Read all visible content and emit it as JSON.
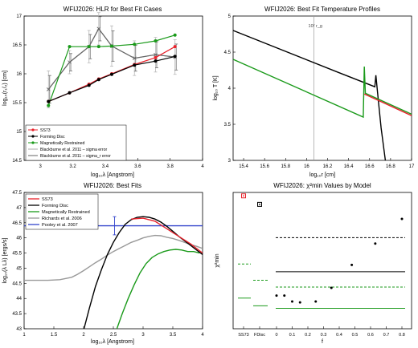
{
  "chart_data": [
    {
      "type": "line",
      "title": "WFIJ2026: HLR for Best Fit Cases",
      "xlabel": "log₁₀λ [Angstrom]",
      "ylabel": "log₁₀(r₁/₂) [cm]",
      "xlim": [
        2.9,
        4.0
      ],
      "ylim": [
        14.5,
        17.0
      ],
      "xticks": [
        "3",
        "3.2",
        "3.4",
        "3.6",
        "3.8",
        "4"
      ],
      "xtick_values": [
        3.0,
        3.2,
        3.4,
        3.6,
        3.8,
        4.0
      ],
      "yticks": [
        "14.5",
        "15",
        "15.5",
        "16",
        "16.5",
        "17"
      ],
      "ytick_values": [
        14.5,
        15.0,
        15.5,
        16.0,
        16.5,
        17.0
      ],
      "legend_position": "bottom-left",
      "series": [
        {
          "name": "SS73",
          "color": "#e8222b",
          "marker": "o",
          "x": [
            3.05,
            3.18,
            3.3,
            3.36,
            3.44,
            3.58,
            3.71,
            3.83
          ],
          "y": [
            15.52,
            15.67,
            15.82,
            15.91,
            16.0,
            16.16,
            16.28,
            16.47
          ]
        },
        {
          "name": "Forming Disc",
          "color": "#000000",
          "marker": "o",
          "x": [
            3.05,
            3.18,
            3.3,
            3.36,
            3.44,
            3.58,
            3.71,
            3.83
          ],
          "y": [
            15.52,
            15.67,
            15.8,
            15.9,
            15.99,
            16.15,
            16.22,
            16.3
          ]
        },
        {
          "name": "Magnetically Restrained",
          "color": "#1a9a1a",
          "marker": "o",
          "x": [
            3.05,
            3.18,
            3.3,
            3.36,
            3.44,
            3.58,
            3.71,
            3.83
          ],
          "y": [
            15.45,
            16.47,
            16.47,
            16.47,
            16.48,
            16.51,
            16.57,
            16.67
          ]
        },
        {
          "name": "Blackburne et al. 2011 – sigma error",
          "color": "#aaaaaa",
          "marker": "x",
          "x": [
            3.05,
            3.18,
            3.3,
            3.36,
            3.44,
            3.58,
            3.71,
            3.83
          ],
          "y": [
            15.73,
            16.2,
            16.47,
            16.78,
            16.48,
            16.27,
            16.33,
            16.29
          ]
        },
        {
          "name": "Blackburne et al. 2011 – sigma_r error",
          "color": "#666666",
          "marker": "x",
          "x": [
            3.05,
            3.18,
            3.3,
            3.36,
            3.44,
            3.58,
            3.71,
            3.83
          ],
          "y": [
            15.73,
            16.2,
            16.47,
            16.78,
            16.48,
            16.27,
            16.33,
            16.29
          ]
        }
      ]
    },
    {
      "type": "line",
      "title": "WFIJ2026: Best Fit Temperature Profiles",
      "xlabel": "log₁₀r [cm]",
      "ylabel": "log₁₀ T [K]",
      "xlim": [
        15.3,
        17.0
      ],
      "ylim": [
        3.0,
        5.0
      ],
      "xticks": [
        "15.4",
        "15.6",
        "15.8",
        "16",
        "16.2",
        "16.4",
        "16.6",
        "16.8",
        "17"
      ],
      "xtick_values": [
        15.4,
        15.6,
        15.8,
        16.0,
        16.2,
        16.4,
        16.6,
        16.8,
        17.0
      ],
      "yticks": [
        "3",
        "3.5",
        "4",
        "4.5",
        "5"
      ],
      "ytick_values": [
        3.0,
        3.5,
        4.0,
        4.5,
        5.0
      ],
      "annotation": "10² r_g",
      "annotation_x": 16.07,
      "series": [
        {
          "name": "black",
          "color": "#000000",
          "x": [
            15.3,
            16.3,
            16.65,
            16.66,
            16.675,
            16.71,
            16.75
          ],
          "y": [
            4.8,
            4.22,
            4.02,
            4.18,
            3.95,
            3.45,
            3.0
          ]
        },
        {
          "name": "green",
          "color": "#1a9a1a",
          "x": [
            15.3,
            16.54,
            16.55,
            16.56,
            17.0
          ],
          "y": [
            4.4,
            3.6,
            4.3,
            3.93,
            3.64
          ]
        },
        {
          "name": "red",
          "color": "#e8222b",
          "x": [
            16.55,
            17.0
          ],
          "y": [
            3.92,
            3.62
          ]
        }
      ]
    },
    {
      "type": "line",
      "title": "WFIJ2026: Best Fits",
      "xlabel": "log₁₀λ [Angstrom]",
      "ylabel": "log₁₀(λ Lλ) [ergs/s]",
      "xlim": [
        1.0,
        4.0
      ],
      "ylim": [
        43.0,
        47.5
      ],
      "xticks": [
        "1",
        "1.5",
        "2",
        "2.5",
        "3",
        "3.5",
        "4"
      ],
      "xtick_values": [
        1.0,
        1.5,
        2.0,
        2.5,
        3.0,
        3.5,
        4.0
      ],
      "yticks": [
        "43",
        "43.5",
        "44",
        "44.5",
        "45",
        "45.5",
        "46",
        "46.5",
        "47",
        "47.5"
      ],
      "ytick_values": [
        43.0,
        43.5,
        44.0,
        44.5,
        45.0,
        45.5,
        46.0,
        46.5,
        47.0,
        47.5
      ],
      "legend_position": "top-left",
      "series": [
        {
          "name": "SS73",
          "color": "#e8222b",
          "x": [
            2.8,
            3.0,
            3.2,
            3.4,
            3.6,
            3.8,
            4.0
          ],
          "y": [
            46.62,
            46.65,
            46.55,
            46.3,
            46.05,
            45.8,
            45.5
          ]
        },
        {
          "name": "Forming Disc",
          "color": "#000000",
          "x": [
            2.0,
            2.1,
            2.2,
            2.3,
            2.4,
            2.5,
            2.6,
            2.7,
            2.8,
            2.9,
            3.0,
            3.1,
            3.2,
            3.3,
            3.4,
            3.5,
            3.6,
            3.7,
            3.8,
            3.9,
            4.0
          ],
          "y": [
            42.95,
            43.7,
            44.4,
            44.95,
            45.45,
            45.85,
            46.18,
            46.45,
            46.6,
            46.68,
            46.7,
            46.68,
            46.62,
            46.52,
            46.38,
            46.22,
            46.05,
            45.9,
            45.75,
            45.6,
            45.45
          ]
        },
        {
          "name": "Magnetically Restrained",
          "color": "#1a9a1a",
          "x": [
            2.55,
            2.65,
            2.75,
            2.85,
            2.95,
            3.05,
            3.15,
            3.25,
            3.35,
            3.45,
            3.55,
            3.65,
            3.75,
            3.85,
            3.95
          ],
          "y": [
            42.95,
            43.5,
            44.0,
            44.45,
            44.85,
            45.15,
            45.35,
            45.47,
            45.55,
            45.6,
            45.62,
            45.6,
            45.55,
            45.55,
            45.5
          ]
        },
        {
          "name": "Richards et al. 2006",
          "color": "#999999",
          "x": [
            1.0,
            1.2,
            1.4,
            1.6,
            1.8,
            1.9,
            2.0,
            2.1,
            2.2,
            2.3,
            2.4,
            2.5,
            2.6,
            2.7,
            2.8,
            2.9,
            3.0,
            3.1,
            3.2,
            3.3,
            3.4,
            3.5,
            3.6,
            3.7,
            3.8,
            3.9,
            4.0
          ],
          "y": [
            44.6,
            44.6,
            44.6,
            44.62,
            44.7,
            44.8,
            44.92,
            45.05,
            45.18,
            45.3,
            45.43,
            45.55,
            45.65,
            45.75,
            45.85,
            45.92,
            46.0,
            46.05,
            46.08,
            46.07,
            46.02,
            45.98,
            45.92,
            45.85,
            45.78,
            45.72,
            45.65
          ]
        },
        {
          "name": "Pooley et al. 2007",
          "color": "#3344cc",
          "x": [
            1.0,
            4.0
          ],
          "y": [
            46.4,
            46.4
          ]
        }
      ],
      "error_point": {
        "x": 2.52,
        "y": 46.4,
        "yerr": 0.3
      }
    },
    {
      "type": "scatter",
      "title": "WFIJ2026: χ²min Values by Model",
      "xlabel": "f",
      "ylabel": "χ²min",
      "categories": [
        "SS73",
        "FDisc"
      ],
      "f_ticks": [
        "0",
        "0.1",
        "0.2",
        "0.3",
        "0.4",
        "0.5",
        "0.6",
        "0.7",
        "0.8"
      ],
      "f_tick_values": [
        0.0,
        0.1,
        0.2,
        0.3,
        0.4,
        0.5,
        0.6,
        0.7,
        0.8
      ],
      "ylim": [
        0,
        80
      ],
      "series": [
        {
          "name": "points",
          "color": "#000000",
          "x": [
            0.0,
            0.05,
            0.1,
            0.15,
            0.25,
            0.35,
            0.48,
            0.63,
            0.8
          ],
          "y": [
            19.5,
            19.5,
            16.0,
            15.5,
            16.0,
            24.0,
            37.5,
            50.0,
            64.5
          ]
        }
      ],
      "category_markers": [
        {
          "category": "SS73",
          "y": 78,
          "color": "#e8222b"
        },
        {
          "category": "FDisc",
          "y": 73,
          "color": "#000000"
        }
      ],
      "hlines": [
        {
          "region": "SS73",
          "y": 18.0,
          "color": "#1a9a1a",
          "style": "solid"
        },
        {
          "region": "SS73",
          "y": 38.0,
          "color": "#1a9a1a",
          "style": "dashed"
        },
        {
          "region": "FDisc",
          "y": 13.5,
          "color": "#1a9a1a",
          "style": "solid"
        },
        {
          "region": "FDisc",
          "y": 28.5,
          "color": "#1a9a1a",
          "style": "dashed"
        },
        {
          "region": "f",
          "y": 12.0,
          "color": "#1a9a1a",
          "style": "solid"
        },
        {
          "region": "f",
          "y": 24.5,
          "color": "#1a9a1a",
          "style": "dashed"
        },
        {
          "region": "f",
          "y": 33.5,
          "color": "#000000",
          "style": "solid"
        },
        {
          "region": "f",
          "y": 53.5,
          "color": "#000000",
          "style": "dashed"
        }
      ]
    }
  ]
}
